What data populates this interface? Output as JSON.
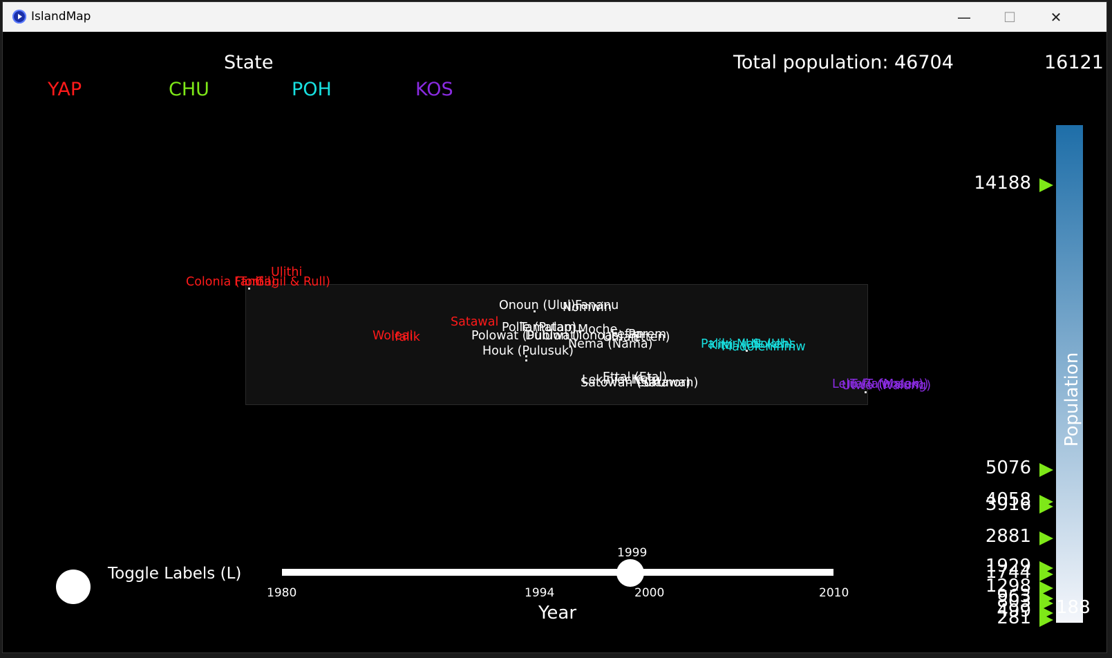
{
  "window": {
    "title": "IslandMap",
    "min_glyph": "—",
    "max_glyph": "☐",
    "close_glyph": "✕"
  },
  "header": {
    "state_title": "State",
    "total_label": "Total population: 46704",
    "max_value": "16121"
  },
  "legend": [
    {
      "label": "YAP",
      "color": "#ff1a1a"
    },
    {
      "label": "CHU",
      "color": "#7ee818"
    },
    {
      "label": "POH",
      "color": "#18e0e0"
    },
    {
      "label": "KOS",
      "color": "#8a2be2"
    }
  ],
  "islands": [
    {
      "name": "Ulithi",
      "color": "#ff1a1a"
    },
    {
      "name": "Colonia (Tomil)",
      "color": "#ff1a1a"
    },
    {
      "name": "Fanif",
      "color": "#ff1a1a"
    },
    {
      "name": "Gagil & Rull)",
      "color": "#ff1a1a"
    },
    {
      "name": "Woleai",
      "color": "#ff1a1a"
    },
    {
      "name": "Ifalik",
      "color": "#ff1a1a"
    },
    {
      "name": "Satawal",
      "color": "#ff1a1a"
    },
    {
      "name": "Onoun (Ulul)",
      "color": "#ffffff"
    },
    {
      "name": "Fananu",
      "color": "#ffffff"
    },
    {
      "name": "Nomwin",
      "color": "#ffffff"
    },
    {
      "name": "Polle (Pulap)",
      "color": "#ffffff"
    },
    {
      "name": "Tamatam",
      "color": "#ffffff"
    },
    {
      "name": "Moche",
      "color": "#ffffff"
    },
    {
      "name": "Polowat (Puluwat)",
      "color": "#ffffff"
    },
    {
      "name": "Dublon (Tonoas)",
      "color": "#ffffff"
    },
    {
      "name": "Uman",
      "color": "#ffffff"
    },
    {
      "name": "Fefan",
      "color": "#ffffff"
    },
    {
      "name": "Parem",
      "color": "#ffffff"
    },
    {
      "name": "Etten)",
      "color": "#ffffff"
    },
    {
      "name": "Nema (Nama)",
      "color": "#ffffff"
    },
    {
      "name": "Houk (Pulusuk)",
      "color": "#ffffff"
    },
    {
      "name": "Lekinioch",
      "color": "#ffffff"
    },
    {
      "name": "Ettal (Etal)",
      "color": "#ffffff"
    },
    {
      "name": "Kutu",
      "color": "#ffffff"
    },
    {
      "name": "Satowan (Satawan)",
      "color": "#ffffff"
    },
    {
      "name": "Lukunor)",
      "color": "#ffffff"
    },
    {
      "name": "Palikir (U)",
      "color": "#18e0e0"
    },
    {
      "name": "Kitti",
      "color": "#18e0e0"
    },
    {
      "name": "Madolenihmw",
      "color": "#18e0e0"
    },
    {
      "name": "Nett (Uh)",
      "color": "#18e0e0"
    },
    {
      "name": "Sokehs",
      "color": "#18e0e0"
    },
    {
      "name": "Lelu (Tafunsak)",
      "color": "#8a2be2"
    },
    {
      "name": "Utwe (Walung)",
      "color": "#8a2be2"
    },
    {
      "name": "Tafu (Malem)",
      "color": "#8a2be2"
    }
  ],
  "toggle": {
    "label": "Toggle Labels (L)"
  },
  "slider": {
    "current_year": "1999",
    "ticks": [
      "1980",
      "1994",
      "2000",
      "2010"
    ],
    "axis_label": "Year"
  },
  "population_bar": {
    "title": "Population",
    "min_value": "188",
    "markers": [
      "14188",
      "5076",
      "4058",
      "3916",
      "2881",
      "1929",
      "1744",
      "1298",
      "963",
      "803",
      "499",
      "281"
    ]
  }
}
